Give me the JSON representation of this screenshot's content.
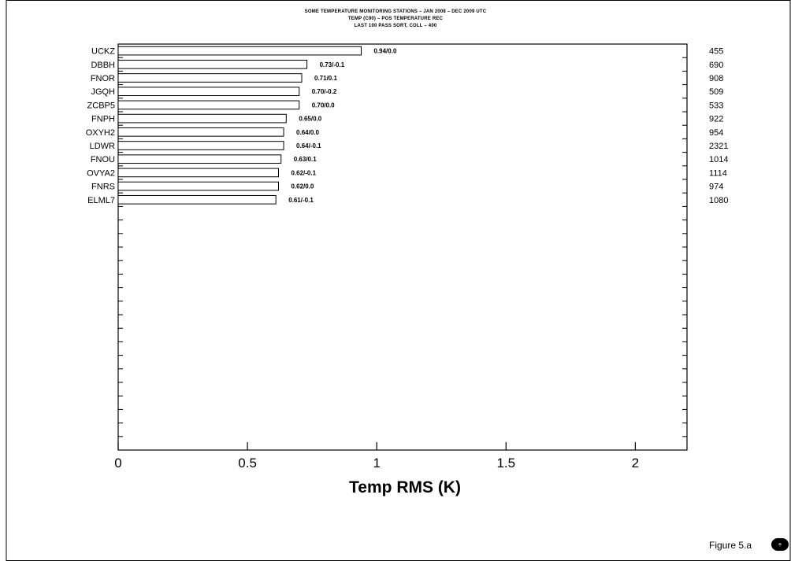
{
  "header": {
    "title_lines": [
      "SOME TEMPERATURE MONITORING STATIONS – JAN 2008 – DEC 2009 UTC",
      "TEMP (C90) – POS TEMPERATURE REC",
      "LAST 100 PASS  SORT, COLL – 400"
    ]
  },
  "figure_label": "Figure 5.a",
  "corner_icon": "circle-logo-icon",
  "chart_data": {
    "type": "bar",
    "orientation": "horizontal",
    "xlabel": "Temp RMS (K)",
    "xlim": [
      0,
      2.2
    ],
    "xticks": [
      0,
      0.5,
      1,
      1.5,
      2
    ],
    "xtick_labels": [
      "0",
      "0.5",
      "1",
      "1.5",
      "2"
    ],
    "n_slots": 30,
    "categories": [
      "UCKZ",
      "DBBH",
      "FNOR",
      "JGQH",
      "ZCBP5",
      "FNPH",
      "OXYH2",
      "LDWR",
      "FNOU",
      "OVYA2",
      "FNRS",
      "ELML7"
    ],
    "values": [
      0.94,
      0.73,
      0.71,
      0.7,
      0.7,
      0.65,
      0.64,
      0.64,
      0.63,
      0.62,
      0.62,
      0.61
    ],
    "bar_labels": [
      "0.94/0.0",
      "0.73/-0.1",
      "0.71/0.1",
      "0.70/-0.2",
      "0.70/0.0",
      "0.65/0.0",
      "0.64/0.0",
      "0.64/-0.1",
      "0.63/0.1",
      "0.62/-0.1",
      "0.62/0.0",
      "0.61/-0.1"
    ],
    "right_labels": [
      "455",
      "690",
      "908",
      "509",
      "533",
      "922",
      "954",
      "2321",
      "1014",
      "1114",
      "974",
      "1080"
    ],
    "grid": false,
    "colors": {
      "bar_fill": "#ffffff",
      "bar_stroke": "#000000",
      "axis": "#000000"
    }
  }
}
